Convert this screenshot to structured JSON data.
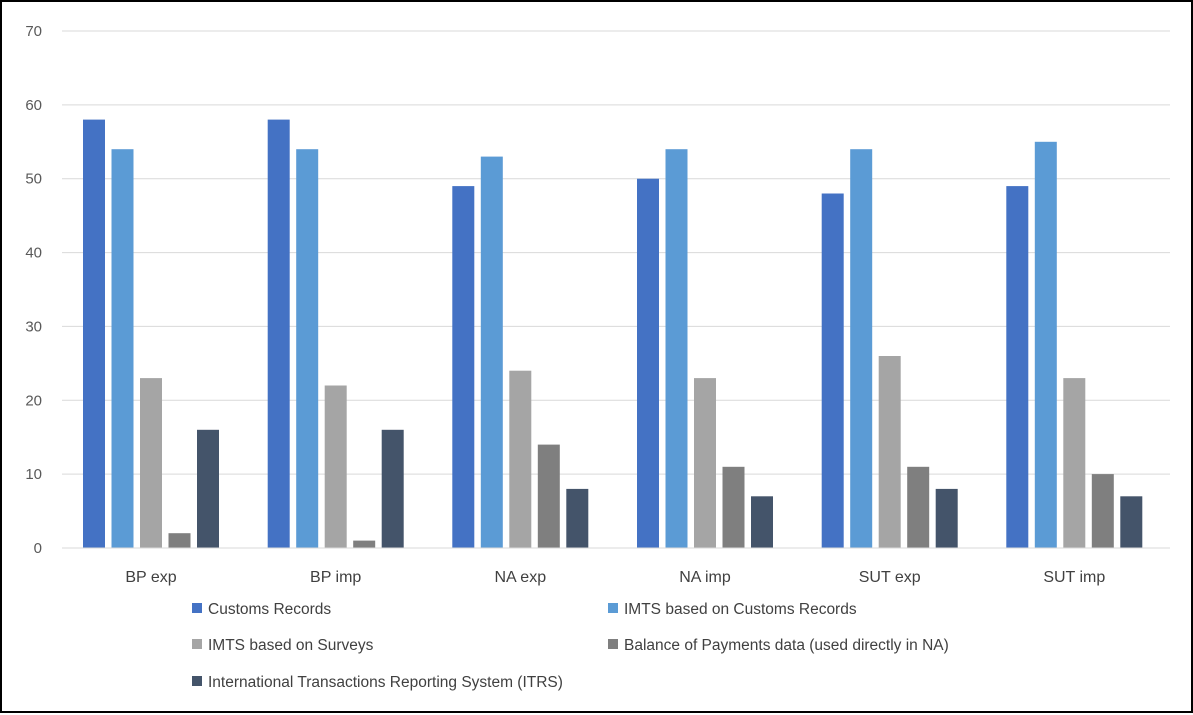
{
  "chart_data": {
    "type": "bar",
    "title": "",
    "xlabel": "",
    "ylabel": "",
    "ylim": [
      0,
      70
    ],
    "yticks": [
      0,
      10,
      20,
      30,
      40,
      50,
      60,
      70
    ],
    "grid": true,
    "legend_position": "bottom",
    "categories": [
      "BP exp",
      "BP imp",
      "NA exp",
      "NA imp",
      "SUT exp",
      "SUT imp"
    ],
    "series": [
      {
        "name": "Customs Records",
        "color": "#4472C4",
        "values": [
          58,
          58,
          49,
          50,
          48,
          49
        ]
      },
      {
        "name": "IMTS based on Customs Records",
        "color": "#5B9BD5",
        "values": [
          54,
          54,
          53,
          54,
          54,
          55
        ]
      },
      {
        "name": "IMTS based on Surveys",
        "color": "#A5A5A5",
        "values": [
          23,
          22,
          24,
          23,
          26,
          23
        ]
      },
      {
        "name": "Balance of Payments data (used directly in NA)",
        "color": "#7F7F7F",
        "values": [
          2,
          1,
          14,
          11,
          11,
          10
        ]
      },
      {
        "name": "International Transactions Reporting System (ITRS)",
        "color": "#44546A",
        "values": [
          16,
          16,
          8,
          7,
          8,
          7
        ]
      }
    ]
  }
}
